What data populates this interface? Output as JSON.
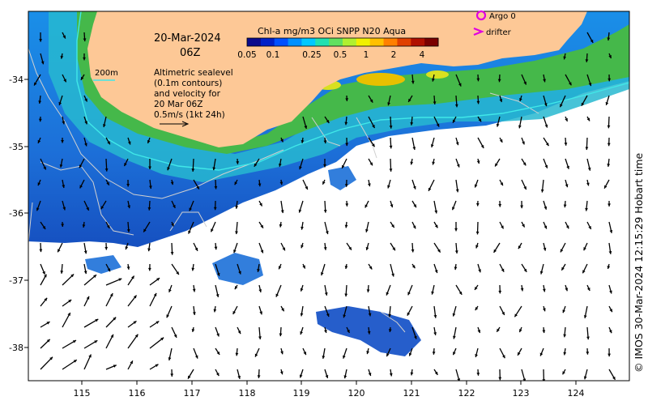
{
  "title": {
    "date": "20-Mar-2024",
    "time": "06Z"
  },
  "colorbar": {
    "label": "Chl-a mg/m3 OCi SNPP N20 Aqua",
    "ticks": [
      "0.05",
      "0.1",
      "0.25",
      "0.5",
      "1",
      "2",
      "4"
    ],
    "colors": [
      "#0a0a8c",
      "#0020c8",
      "#0050ff",
      "#0090ff",
      "#00c8ff",
      "#20e0b0",
      "#60e060",
      "#b0f030",
      "#f0f000",
      "#ffc000",
      "#ff8000",
      "#e04000",
      "#b01000",
      "#7a0000"
    ]
  },
  "legend": {
    "argo": "Argo 0",
    "drifter": "drifter",
    "argo_color": "#e000e0",
    "drifter_color": "#e000e0"
  },
  "contour_legend": {
    "label": "200m",
    "color": "#30e0e0"
  },
  "annotation": {
    "lines": [
      "Altimetric sealevel",
      "(0.1m contours)",
      "and velocity for",
      "20 Mar 06Z",
      "0.5m/s (1kt 24h)"
    ]
  },
  "axes": {
    "x_ticks": [
      "115",
      "116",
      "117",
      "118",
      "119",
      "120",
      "121",
      "122",
      "123",
      "124"
    ],
    "y_ticks": [
      "-34",
      "-35",
      "-36",
      "-37",
      "-38"
    ]
  },
  "credit": "© IMOS 30-Mar-2024 12:15:29 Hobart time",
  "colors": {
    "land": "#fdc896",
    "ocean_deep": "#1a5fd0",
    "ocean_mid": "#1c90e8",
    "ocean_shelf": "#30c8c0",
    "coast_green": "#40b040",
    "contour": "#d0d0d0"
  }
}
